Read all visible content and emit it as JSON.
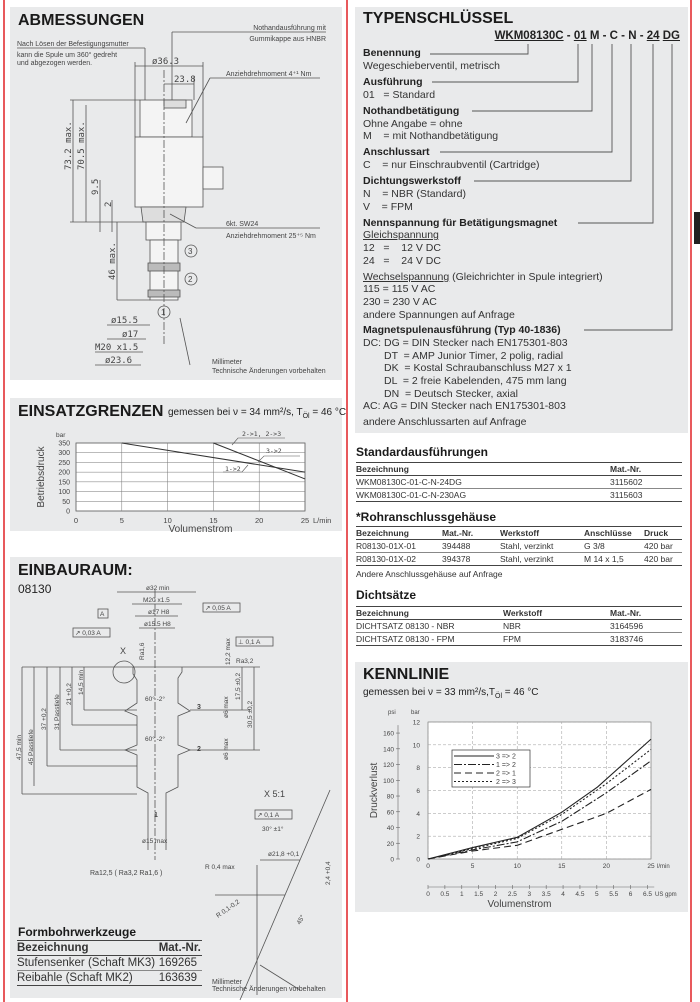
{
  "abmessungen": {
    "title": "ABMESSUNGEN",
    "note_top_right": [
      "Nothandausführung mit",
      "Gummikappe aus HNBR"
    ],
    "note_top_left": [
      "Nach Lösen der Befestigungsmutter",
      "kann die Spule um 360° gedreht",
      "und abgezogen werden."
    ],
    "dims": {
      "d36": "ø36.3",
      "w238": "23.8",
      "h732": "73.2 max.",
      "h705": "70.5 max.",
      "h95": "9.5",
      "h2": "2",
      "h46": "46 max.",
      "d155": "ø15.5",
      "d17": "ø17",
      "m20": "M20 x1.5",
      "d236": "ø23.6"
    },
    "torque1": "Anziehdrehmoment 4⁺¹ Nm",
    "hex": "6kt. SW24",
    "torque2": "Anziehdrehmoment 25⁺⁵ Nm",
    "ports": [
      "1",
      "2",
      "3"
    ],
    "footer": [
      "Millimeter",
      "Technische Änderungen vorbehalten"
    ]
  },
  "einsatzgrenzen": {
    "title": "EINSATZGRENZEN",
    "subtitle": "gemessen bei ν = 34 mm²/s, T",
    "subtitle_sub": "Öl",
    "subtitle_end": " = 46 °C"
  },
  "einbauraum": {
    "title": "EINBAURAUM:",
    "subtitle": "08130",
    "labels": {
      "d32": "ø32 min",
      "m20": "M20 x1.5",
      "d17": "ø17 H8",
      "d155": "ø15.5 H8",
      "datum": "A",
      "tol005": "↗ 0,05 A",
      "tol003": "↗ 0,03 A",
      "tol01": "⊥ 0,1 A",
      "x": "X",
      "ra16": "Ra1,6",
      "ra32": "Ra3,2",
      "a60a": "60° -2°",
      "a60b": "60° -2°",
      "d475": "47,5 min",
      "d45": "45 Passtiefe",
      "d37": "37 +0,2",
      "d31": "31 Passtiefe",
      "d21": "21 +0,2",
      "d145": "14,5 min",
      "d122": "12,2 max",
      "d175": "17,5 ±0,2",
      "d305": "30,5 ±0,2",
      "d6a": "ø6 max",
      "d6b": "ø6 max",
      "d15": "ø15 max",
      "rough": "Ra12,5 ( Ra3,2  Ra1,6 )",
      "detail": "X 5:1",
      "tol01b": "↗ 0,1 A",
      "a30": "30° ±1°",
      "d218": "ø21,8 +0,1",
      "r04": "R 0,4 max",
      "d24": "2,4 +0,4",
      "r0102": "R 0,1-0,2",
      "a45": "45°"
    },
    "ports": [
      "1",
      "2",
      "3"
    ],
    "footer": [
      "Millimeter",
      "Technische Änderungen vorbehalten"
    ]
  },
  "formbohrwerkzeuge": {
    "title": "Formbohrwerkzeuge",
    "headers": [
      "Bezeichnung",
      "Mat.-Nr."
    ],
    "rows": [
      [
        "Stufensenker (Schaft MK3)",
        "169265"
      ],
      [
        "Reibahle (Schaft MK2)",
        "163639"
      ]
    ]
  },
  "typenschluessel": {
    "title": "TYPENSCHLÜSSEL",
    "code": [
      "WKM08130C",
      " - ",
      "01",
      " ",
      "M",
      " - ",
      "C",
      " - ",
      "N",
      " - ",
      "24",
      " ",
      "DG"
    ],
    "lines": [
      "Benennung",
      "Wegeschieberventil, metrisch",
      "Ausführung",
      "01   = Standard",
      "Nothandbetätigung",
      "Ohne Angabe = ohne",
      "M    = mit Nothandbetätigung",
      "Anschlussart",
      "C    = nur Einschraubventil (Cartridge)",
      "Dichtungswerkstoff",
      "N    = NBR (Standard)",
      "V    = FPM",
      "Nennspannung für Betätigungsmagnet",
      "Gleichspannung",
      "12   =    12 V DC",
      "24   =    24 V DC",
      "Wechselspannung",
      " (Gleichrichter in Spule integriert)",
      "115 = 115 V AC",
      "230 = 230 V AC",
      "andere Spannungen auf Anfrage",
      "Magnetspulenausführung (Typ 40-1836)",
      "DC: DG = DIN Stecker nach EN175301-803",
      "DT  = AMP Junior Timer, 2 polig, radial",
      "DK  = Kostal Schraubanschluss M27 x 1",
      "DL  = 2 freie Kabelenden, 475 mm lang",
      "DN  = Deutsch Stecker, axial",
      "AC: AG = DIN Stecker nach EN175301-803",
      "andere Anschlussarten auf Anfrage"
    ]
  },
  "standard": {
    "title": "Standardausführungen",
    "headers": [
      "Bezeichnung",
      "Mat.-Nr."
    ],
    "rows": [
      [
        "WKM08130C-01-C-N-24DG",
        "3115602"
      ],
      [
        "WKM08130C-01-C-N-230AG",
        "3115603"
      ]
    ]
  },
  "rohr": {
    "title": "*Rohranschlussgehäuse",
    "headers": [
      "Bezeichnung",
      "Mat.-Nr.",
      "Werkstoff",
      "Anschlüsse",
      "Druck"
    ],
    "rows": [
      [
        "R08130-01X-01",
        "394488",
        "Stahl, verzinkt",
        "G 3/8",
        "420 bar"
      ],
      [
        "R08130-01X-02",
        "394378",
        "Stahl, verzinkt",
        "M 14 x 1,5",
        "420 bar"
      ]
    ],
    "note": "Andere Anschlussgehäuse auf Anfrage"
  },
  "dicht": {
    "title": "Dichtsätze",
    "headers": [
      "Bezeichnung",
      "Werkstoff",
      "Mat.-Nr."
    ],
    "rows": [
      [
        "DICHTSATZ 08130 - NBR",
        "NBR",
        "3164596"
      ],
      [
        "DICHTSATZ 08130 - FPM",
        "FPM",
        "3183746"
      ]
    ]
  },
  "kennlinie": {
    "title": "KENNLINIE",
    "subtitle": "gemessen bei ν = 33 mm²/s,T",
    "subtitle_sub": "Öl",
    "subtitle_end": " = 46 °C"
  },
  "chart_data": [
    {
      "type": "line",
      "title": "EINSATZGRENZEN",
      "xlabel": "Volumenstrom",
      "xunit": "L/min",
      "ylabel": "Betriebsdruck",
      "yunit": "bar",
      "xlim": [
        0,
        25
      ],
      "ylim": [
        0,
        350
      ],
      "xticks": [
        0,
        5,
        10,
        15,
        20,
        25
      ],
      "yticks": [
        0,
        50,
        100,
        150,
        200,
        250,
        300,
        350
      ],
      "grid": true,
      "series": [
        {
          "name": "1->2",
          "x": [
            5,
            25
          ],
          "y": [
            350,
            200
          ]
        },
        {
          "name": "2->1, 2->3",
          "x": [
            15,
            25
          ],
          "y": [
            350,
            165
          ]
        }
      ],
      "annotations": [
        "2->1, 2->3",
        "3->2",
        "1->2"
      ]
    },
    {
      "type": "line",
      "title": "KENNLINIE",
      "xlabel": "Volumenstrom",
      "xunit": "l/min",
      "x2unit": "US gpm",
      "ylabel": "Druckverlust",
      "yunit": "bar",
      "y2unit": "psi",
      "xlim": [
        0,
        25
      ],
      "ylim": [
        0,
        12
      ],
      "xticks": [
        0,
        5,
        10,
        15,
        20,
        25
      ],
      "yticks": [
        0,
        2,
        4,
        6,
        8,
        10,
        12
      ],
      "x2ticks": [
        0,
        0.5,
        1,
        1.5,
        2,
        2.5,
        3,
        3.5,
        4,
        4.5,
        5,
        5.5,
        6,
        6.5
      ],
      "y2ticks": [
        0,
        20,
        40,
        60,
        80,
        100,
        120,
        140,
        160
      ],
      "grid": true,
      "legend": "top-left",
      "series": [
        {
          "name": "3 => 2",
          "style": "solid",
          "x": [
            0,
            5,
            10,
            15,
            19,
            25
          ],
          "y": [
            0,
            1.0,
            1.9,
            4.1,
            6.3,
            10.5
          ]
        },
        {
          "name": "1 => 2",
          "style": "dashdot",
          "x": [
            0,
            5,
            10,
            15,
            20,
            25
          ],
          "y": [
            0,
            0.8,
            1.5,
            3.3,
            5.8,
            8.6
          ]
        },
        {
          "name": "2 => 1",
          "style": "dashed",
          "x": [
            0,
            5,
            10,
            15,
            20,
            25
          ],
          "y": [
            0,
            0.7,
            1.2,
            2.6,
            4.0,
            6.1
          ]
        },
        {
          "name": "2 => 3",
          "style": "dotted",
          "x": [
            0,
            5,
            10,
            15,
            20,
            25
          ],
          "y": [
            0,
            0.9,
            1.8,
            3.9,
            6.6,
            9.6
          ]
        }
      ]
    }
  ]
}
